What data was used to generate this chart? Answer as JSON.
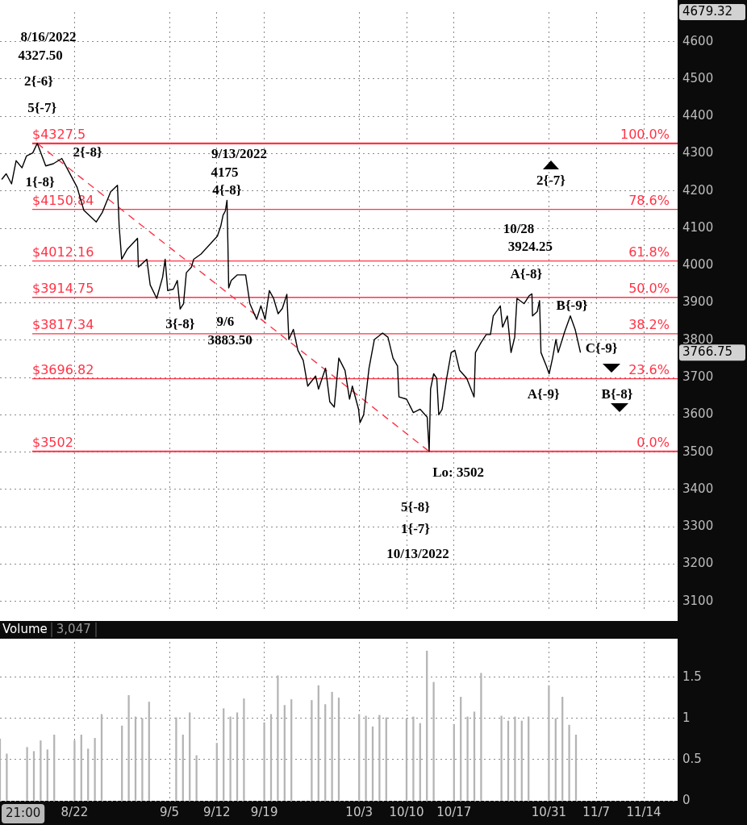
{
  "chart_data": [
    {
      "type": "line",
      "xlim": [
        "2022-08-11",
        "2022-11-19"
      ],
      "xticks": [
        "2022-08-22",
        "2022-09-05",
        "2022-09-12",
        "2022-09-19",
        "2022-10-03",
        "2022-10-10",
        "2022-10-17",
        "2022-10-31",
        "2022-11-07",
        "2022-11-14"
      ],
      "ylim": [
        3080,
        4679.32
      ],
      "yticks": [
        3100,
        3200,
        3300,
        3400,
        3500,
        3600,
        3700,
        3800,
        3900,
        4000,
        4100,
        4200,
        4300,
        4400,
        4500,
        4600,
        {
          "value": 4679.32,
          "label": "4679.32"
        },
        {
          "value": 3766.75,
          "label": "3766.75"
        }
      ],
      "tick_labels": "y",
      "grid": true,
      "legend": false,
      "marker": "none",
      "x": [
        "2022-08-11T06:00",
        "2022-08-11T22:00",
        "2022-08-12T17:00",
        "2022-08-13T09:00",
        "2022-08-14T06:00",
        "2022-08-14T22:00",
        "2022-08-15T20:00",
        "2022-08-16T12:00",
        "2022-08-17T18:00",
        "2022-08-18T21:00",
        "2022-08-20T03:00",
        "2022-08-21T05:00",
        "2022-08-22T09:00",
        "2022-08-23T09:00",
        "2022-08-25T05:00",
        "2022-08-26T02:00",
        "2022-08-27T08:00",
        "2022-08-28T08:00",
        "2022-08-28T14:00",
        "2022-08-28T23:00",
        "2022-08-29T19:00",
        "2022-08-31T07:00",
        "2022-08-31T10:00",
        "2022-09-01T16:00",
        "2022-09-02T04:00",
        "2022-09-03T03:00",
        "2022-09-04T00:00",
        "2022-09-04T09:00",
        "2022-09-04T18:00",
        "2022-09-05T14:00",
        "2022-09-06T04:00",
        "2022-09-06T14:00",
        "2022-09-07T02:00",
        "2022-09-07T12:00",
        "2022-09-08T06:00",
        "2022-09-08T14:00",
        "2022-09-09T16:00",
        "2022-09-12T02:00",
        "2022-09-12T14:00",
        "2022-09-12T22:00",
        "2022-09-13T06:00",
        "2022-09-13T12:00",
        "2022-09-13T15:00",
        "2022-09-13T18:00",
        "2022-09-14T03:00",
        "2022-09-15T00:00",
        "2022-09-16T06:00",
        "2022-09-16T21:00",
        "2022-09-17T21:00",
        "2022-09-18T12:00",
        "2022-09-19T03:00",
        "2022-09-19T18:00",
        "2022-09-20T09:00",
        "2022-09-21T01:00",
        "2022-09-21T16:00",
        "2022-09-22T08:00",
        "2022-09-22T15:00",
        "2022-09-23T07:00",
        "2022-09-23T23:00",
        "2022-09-24T18:00",
        "2022-09-25T10:00",
        "2022-09-26T14:00",
        "2022-09-27T00:00",
        "2022-09-28T01:00",
        "2022-09-28T16:00",
        "2022-09-29T08:00",
        "2022-09-30T00:00",
        "2022-09-30T22:00",
        "2022-10-01T14:00",
        "2022-10-02T00:00",
        "2022-10-02T22:00",
        "2022-10-03T03:00",
        "2022-10-03T16:00",
        "2022-10-04T11:00",
        "2022-10-05T06:00",
        "2022-10-06T11:00",
        "2022-10-07T06:00",
        "2022-10-08T00:00",
        "2022-10-08T16:00",
        "2022-10-08T21:00",
        "2022-10-10T00:00",
        "2022-10-11T00:00",
        "2022-10-12T00:00",
        "2022-10-13T01:00",
        "2022-10-13T08:00",
        "2022-10-13T13:00",
        "2022-10-14T00:00",
        "2022-10-14T11:00",
        "2022-10-14T18:00",
        "2022-10-15T06:00",
        "2022-10-15T22:00",
        "2022-10-16T14:00",
        "2022-10-17T03:00",
        "2022-10-17T20:00",
        "2022-10-18T21:00",
        "2022-10-19T23:00",
        "2022-10-20T04:00",
        "2022-10-21T00:00",
        "2022-10-21T18:00",
        "2022-10-22T09:00",
        "2022-10-22T19:00",
        "2022-10-23T20:00",
        "2022-10-24T04:00",
        "2022-10-24T21:00",
        "2022-10-25T10:00",
        "2022-10-25T23:00",
        "2022-10-26T07:00",
        "2022-10-27T08:00",
        "2022-10-28T02:00",
        "2022-10-28T12:00",
        "2022-10-28T14:00",
        "2022-10-29T07:00",
        "2022-10-29T15:00",
        "2022-10-29T20:00",
        "2022-10-30T15:00",
        "2022-10-31T01:00",
        "2022-10-31T13:00",
        "2022-11-01T01:00",
        "2022-11-01T09:00",
        "2022-11-02T08:00",
        "2022-11-03T04:00",
        "2022-11-03T21:00",
        "2022-11-04T16:00"
      ],
      "series": [
        {
          "color": "#000000",
          "values": [
            4231,
            4246,
            4219,
            4281,
            4262,
            4294,
            4302,
            4327.5,
            4267,
            4273,
            4287,
            4250,
            4210,
            4148,
            4117,
            4142,
            4198,
            4215,
            4106,
            4017,
            4044,
            4073,
            3996,
            4017,
            3948,
            3912,
            3969,
            4017,
            3933,
            3937,
            3960,
            3883.5,
            3898,
            3981,
            3996,
            4017,
            4031,
            4079,
            4106,
            4135,
            4146,
            4175,
            4065,
            3940,
            3960,
            3975,
            3975,
            3898,
            3856,
            3892,
            3856,
            3933,
            3912,
            3871,
            3885,
            3923,
            3802,
            3829,
            3773,
            3746,
            3677,
            3704,
            3669,
            3725,
            3635,
            3621,
            3752,
            3719,
            3642,
            3677,
            3615,
            3579,
            3600,
            3725,
            3802,
            3819,
            3808,
            3752,
            3731,
            3648,
            3642,
            3606,
            3615,
            3594,
            3502,
            3669,
            3710,
            3698,
            3600,
            3615,
            3698,
            3767,
            3773,
            3719,
            3698,
            3648,
            3767,
            3794,
            3815,
            3815,
            3865,
            3892,
            3835,
            3865,
            3767,
            3808,
            3912,
            3898,
            3919,
            3924.25,
            3865,
            3877,
            3906,
            3767,
            3731,
            3710,
            3752,
            3802,
            3767,
            3823,
            3865,
            3829,
            3766.75
          ]
        },
        {
          "type": "line",
          "color": "#ff3346",
          "line_style": "dashed",
          "x": [
            "2022-08-16T12:00",
            "2022-10-13T08:00"
          ],
          "values": [
            4327.5,
            3502
          ]
        }
      ],
      "ref_lines": [
        {
          "axis": "y",
          "value": 4327.5,
          "label": "$4327.5",
          "color": "#ff3346"
        },
        {
          "axis": "y",
          "value": 4150.84,
          "label": "$4150.84",
          "color": "#ff3346"
        },
        {
          "axis": "y",
          "value": 4012.16,
          "label": "$4012.16",
          "color": "#ff3346"
        },
        {
          "axis": "y",
          "value": 3914.75,
          "label": "$3914.75",
          "color": "#ff3346"
        },
        {
          "axis": "y",
          "value": 3817.34,
          "label": "$3817.34",
          "color": "#ff3346"
        },
        {
          "axis": "y",
          "value": 3696.82,
          "label": "$3696.82",
          "color": "#ff3346"
        },
        {
          "axis": "y",
          "value": 3502,
          "label": "$3502",
          "color": "#ff3346"
        }
      ],
      "annotations": [
        {
          "text": "100.0%",
          "y": 4327.5
        },
        {
          "text": "78.6%",
          "y": 4150.84
        },
        {
          "text": "61.8%",
          "y": 4012.16
        },
        {
          "text": "50.0%",
          "y": 3914.75
        },
        {
          "text": "38.2%",
          "y": 3817.34
        },
        {
          "text": "23.6%",
          "y": 3696.82
        },
        {
          "text": "0.0%",
          "y": 3502
        },
        "8/16/2022",
        "4327.50",
        "2{-6}",
        {
          "text": "5{-7}",
          "x": "2022-08-16T12:00",
          "y": 4327.5
        },
        {
          "text": "2{-8}",
          "x": "2022-08-20T03:00",
          "y": 4287
        },
        {
          "text": "1{-8}",
          "x": "2022-08-15T20:00",
          "y": 4302
        },
        {
          "text": "9/13/2022",
          "x": "2022-09-13T12:00",
          "y": 4175
        },
        {
          "text": "4175",
          "x": "2022-09-13T12:00",
          "y": 4175
        },
        {
          "text": "4{-8}",
          "x": "2022-09-13T12:00",
          "y": 4175
        },
        {
          "text": "3{-8}",
          "x": "2022-09-06T14:00",
          "y": 3883.5
        },
        {
          "text": "9/6",
          "x": "2022-09-06T14:00",
          "y": 3883.5
        },
        "3883.50",
        {
          "text": "Lo: 3502",
          "x": "2022-10-13T08:00",
          "y": 3502
        },
        "5{-8}",
        "1{-7}",
        "10/13/2022",
        "10/28",
        {
          "text": "3924.25",
          "x": "2022-10-28T12:00",
          "y": 3924.25
        },
        {
          "text": "A{-8}",
          "x": "2022-10-28T12:00",
          "y": 3924.25
        },
        {
          "text": "B{-9}",
          "x": "2022-11-03T04:00",
          "y": 3865
        },
        {
          "text": "A{-9}",
          "x": "2022-10-31T01:00",
          "y": 3710
        },
        {
          "text": "C{-9}",
          "x": "2022-11-04T16:00",
          "y": 3766.75
        },
        "2{-7}",
        "B{-8}"
      ]
    },
    {
      "type": "bar",
      "title": "Volume",
      "annotations": [
        "3,047",
        "21:00"
      ],
      "xlim": [
        "2022-08-11",
        "2022-11-19"
      ],
      "xticks": [
        {
          "value": "2022-08-22",
          "label": "8/22"
        },
        {
          "value": "2022-09-05",
          "label": "9/5"
        },
        {
          "value": "2022-09-12",
          "label": "9/12"
        },
        {
          "value": "2022-09-19",
          "label": "9/19"
        },
        {
          "value": "2022-10-03",
          "label": "10/3"
        },
        {
          "value": "2022-10-10",
          "label": "10/10"
        },
        {
          "value": "2022-10-17",
          "label": "10/17"
        },
        {
          "value": "2022-10-31",
          "label": "10/31"
        },
        {
          "value": "2022-11-07",
          "label": "11/7"
        },
        {
          "value": "2022-11-14",
          "label": "11/14"
        }
      ],
      "ylim": [
        0,
        1.93
      ],
      "yticks": [
        0,
        0.5,
        1,
        1.5
      ],
      "grid": true,
      "legend": false,
      "color": "#b4b4b4",
      "x": [
        "2022-08-11",
        "2022-08-12",
        "2022-08-15",
        "2022-08-16",
        "2022-08-17",
        "2022-08-18",
        "2022-08-19",
        "2022-08-22",
        "2022-08-23",
        "2022-08-24",
        "2022-08-25",
        "2022-08-26",
        "2022-08-29",
        "2022-08-30",
        "2022-08-31",
        "2022-09-01",
        "2022-09-02",
        "2022-09-06",
        "2022-09-07",
        "2022-09-08",
        "2022-09-09",
        "2022-09-12",
        "2022-09-13",
        "2022-09-14",
        "2022-09-15",
        "2022-09-16",
        "2022-09-19",
        "2022-09-20",
        "2022-09-21",
        "2022-09-22",
        "2022-09-23",
        "2022-09-26",
        "2022-09-27",
        "2022-09-28",
        "2022-09-29",
        "2022-09-30",
        "2022-10-03",
        "2022-10-04",
        "2022-10-05",
        "2022-10-06",
        "2022-10-07",
        "2022-10-10",
        "2022-10-11",
        "2022-10-12",
        "2022-10-13",
        "2022-10-14",
        "2022-10-17",
        "2022-10-18",
        "2022-10-19",
        "2022-10-20",
        "2022-10-21",
        "2022-10-24",
        "2022-10-25",
        "2022-10-26",
        "2022-10-27",
        "2022-10-28",
        "2022-10-31",
        "2022-11-01",
        "2022-11-02",
        "2022-11-03",
        "2022-11-04"
      ],
      "values": [
        0.75,
        0.57,
        0.65,
        0.6,
        0.73,
        0.62,
        0.8,
        0.73,
        0.8,
        0.63,
        0.76,
        1.05,
        0.91,
        1.28,
        1.02,
        1.0,
        1.2,
        1.01,
        0.8,
        1.07,
        0.55,
        0.7,
        1.12,
        1.02,
        1.07,
        1.24,
        0.95,
        1.05,
        1.52,
        1.16,
        1.23,
        1.22,
        1.4,
        1.17,
        1.32,
        1.25,
        1.05,
        1.03,
        0.9,
        1.04,
        1.01,
        1.0,
        1.02,
        0.94,
        1.82,
        1.44,
        0.93,
        1.26,
        1.02,
        1.08,
        1.55,
        1.03,
        0.97,
        1.02,
        0.97,
        1.02,
        1.4,
        1.0,
        1.26,
        0.92,
        0.8
      ]
    }
  ]
}
